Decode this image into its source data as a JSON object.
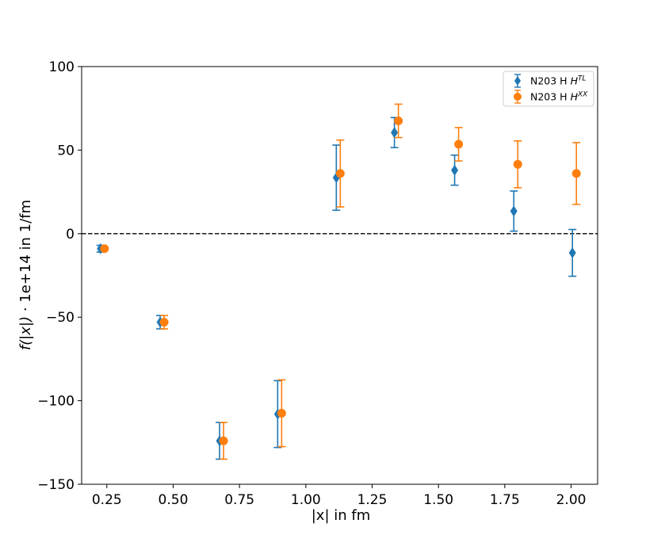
{
  "chart_data": {
    "type": "scatter",
    "xlabel": "|x| in fm",
    "ylabel_main": "f(|x|)",
    "ylabel_rest": " · 1e+14 in 1/fm",
    "xlim": [
      0.155,
      2.1
    ],
    "ylim": [
      -150,
      100
    ],
    "xticks": [
      0.25,
      0.5,
      0.75,
      1.0,
      1.25,
      1.5,
      1.75,
      2.0
    ],
    "xtick_labels": [
      "0.25",
      "0.50",
      "0.75",
      "1.00",
      "1.25",
      "1.50",
      "1.75",
      "2.00"
    ],
    "yticks": [
      -150,
      -100,
      -50,
      0,
      50,
      100
    ],
    "ytick_labels": [
      "−150",
      "−100",
      "−50",
      "0",
      "50",
      "100"
    ],
    "reference_line": {
      "y": 0,
      "style": "dashed",
      "color": "#000000"
    },
    "legend_position": "upper right",
    "series": [
      {
        "name": "N203 H",
        "superscript": "TL",
        "color": "#1f77b4",
        "marker": "diamond",
        "points": [
          {
            "x": 0.226,
            "y": -9,
            "err": 2
          },
          {
            "x": 0.451,
            "y": -53,
            "err": 4
          },
          {
            "x": 0.675,
            "y": -124,
            "err": 11
          },
          {
            "x": 0.894,
            "y": -108,
            "err": 20
          },
          {
            "x": 1.115,
            "y": 33.5,
            "err": 19.5
          },
          {
            "x": 1.334,
            "y": 60.5,
            "err": 9
          },
          {
            "x": 1.561,
            "y": 38,
            "err": 9
          },
          {
            "x": 1.784,
            "y": 13.5,
            "err": 12
          },
          {
            "x": 2.005,
            "y": -11.5,
            "err": 14
          }
        ]
      },
      {
        "name": "N203 H",
        "superscript": "XX",
        "color": "#ff7f0e",
        "marker": "circle",
        "points": [
          {
            "x": 0.241,
            "y": -9,
            "err": 1
          },
          {
            "x": 0.466,
            "y": -53,
            "err": 4
          },
          {
            "x": 0.69,
            "y": -124,
            "err": 11
          },
          {
            "x": 0.909,
            "y": -107.5,
            "err": 20
          },
          {
            "x": 1.13,
            "y": 36,
            "err": 20
          },
          {
            "x": 1.349,
            "y": 67.5,
            "err": 10
          },
          {
            "x": 1.576,
            "y": 53.5,
            "err": 10
          },
          {
            "x": 1.799,
            "y": 41.5,
            "err": 14
          },
          {
            "x": 2.02,
            "y": 36,
            "err": 18.5
          }
        ]
      }
    ]
  }
}
